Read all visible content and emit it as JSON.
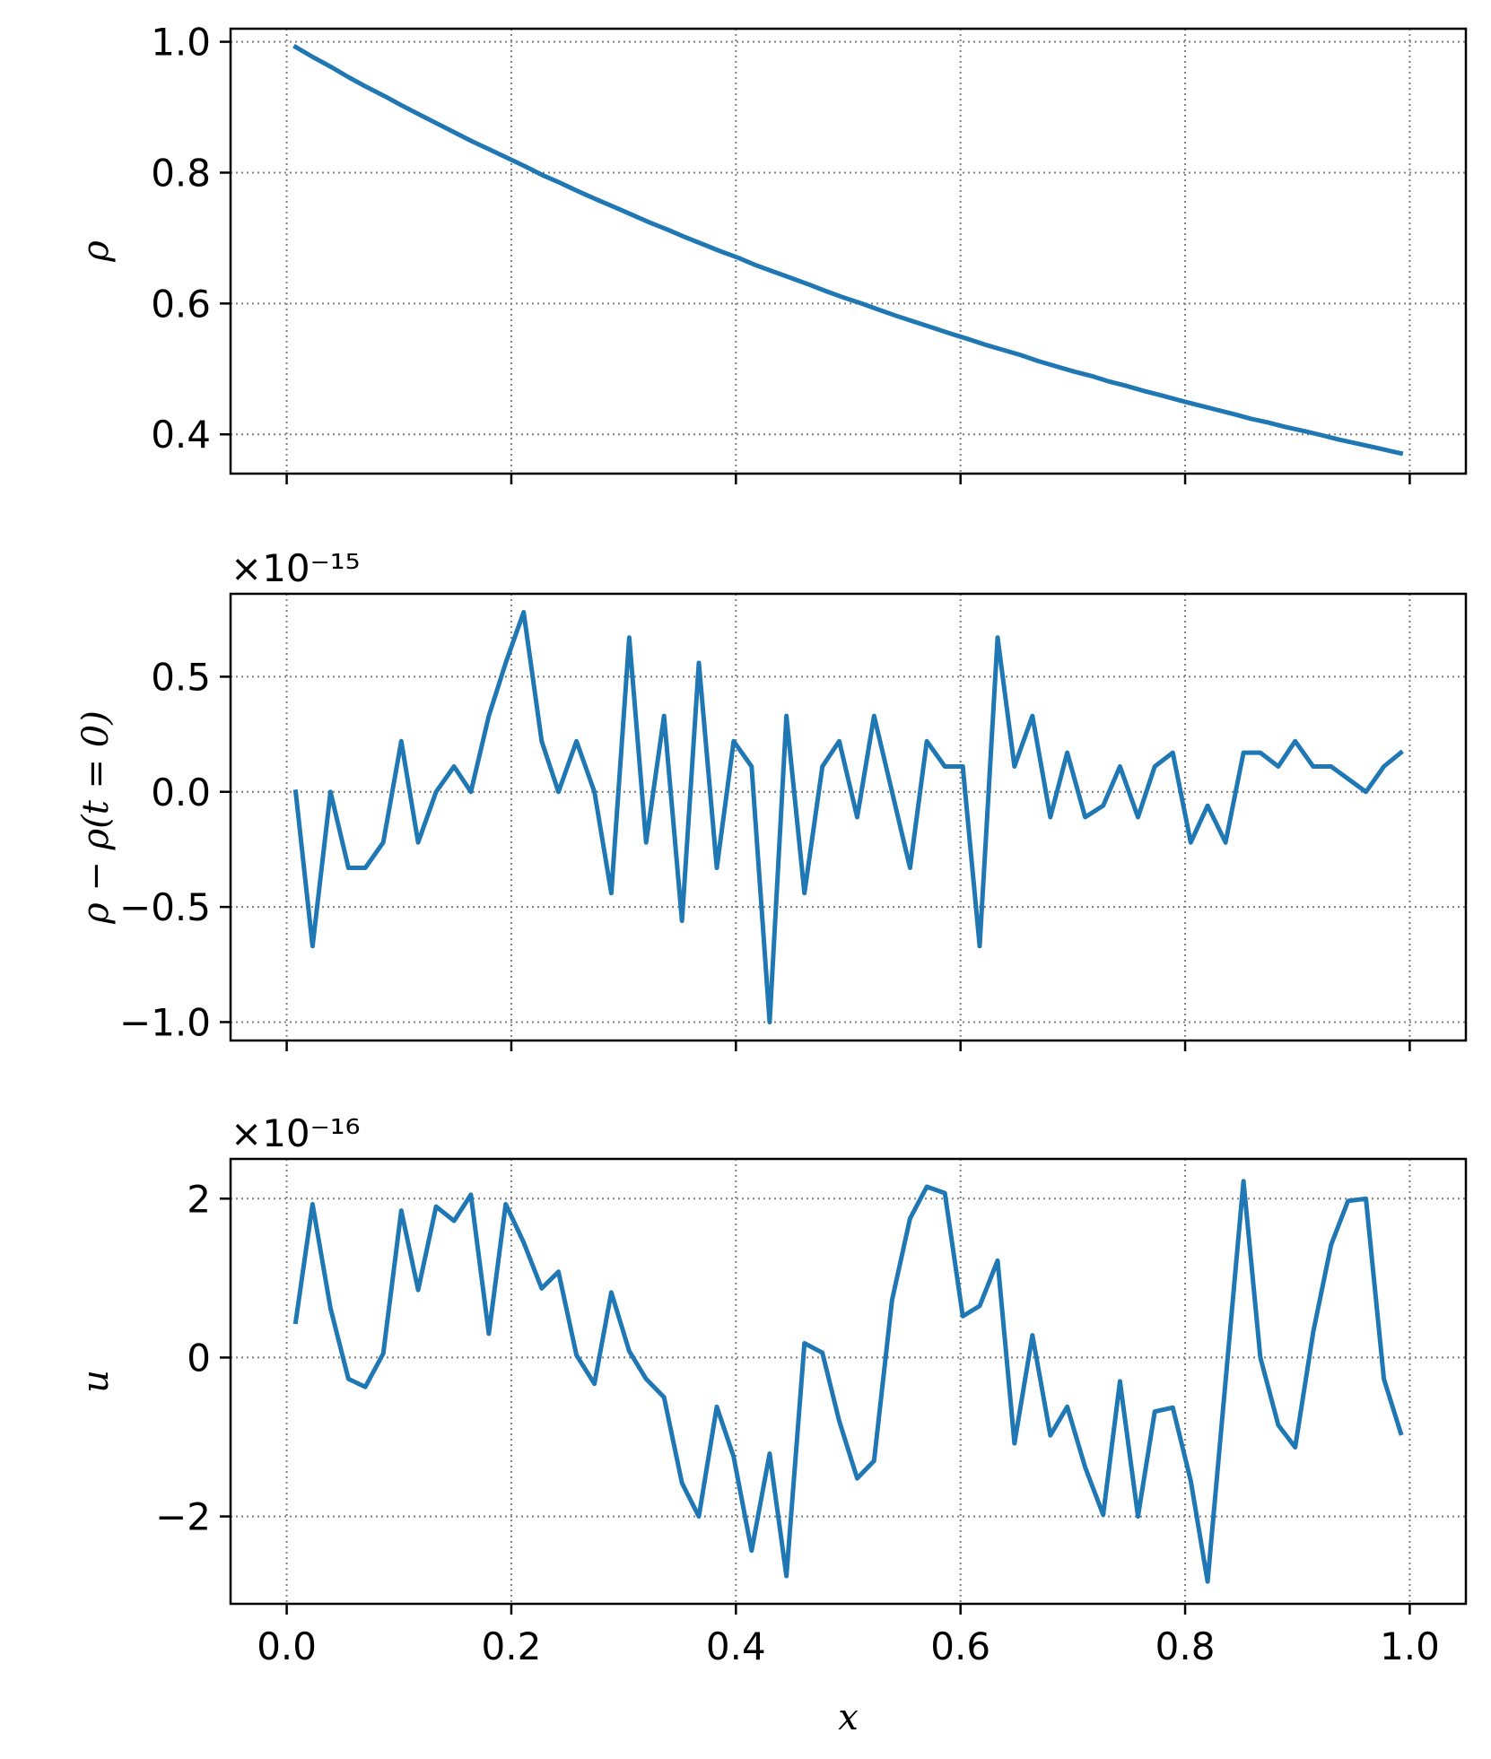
{
  "chart_data": [
    {
      "type": "line",
      "ylabel": "ρ",
      "xlabel": "",
      "xlim": [
        -0.05,
        1.05
      ],
      "ylim": [
        0.34,
        1.02
      ],
      "xticks": [
        0.0,
        0.2,
        0.4,
        0.6,
        0.8,
        1.0
      ],
      "xtick_labels": [],
      "yticks": [
        0.4,
        0.6,
        0.8,
        1.0
      ],
      "ytick_labels": [
        "0.4",
        "0.6",
        "0.8",
        "1.0"
      ],
      "offset_label": "",
      "grid": true,
      "color": "#1f77b4",
      "x": [
        0.008,
        0.024,
        0.04,
        0.055,
        0.071,
        0.087,
        0.102,
        0.118,
        0.134,
        0.15,
        0.165,
        0.181,
        0.197,
        0.213,
        0.228,
        0.244,
        0.26,
        0.276,
        0.291,
        0.307,
        0.323,
        0.339,
        0.354,
        0.37,
        0.386,
        0.402,
        0.417,
        0.433,
        0.449,
        0.465,
        0.48,
        0.496,
        0.512,
        0.528,
        0.543,
        0.559,
        0.575,
        0.591,
        0.606,
        0.622,
        0.638,
        0.654,
        0.669,
        0.685,
        0.701,
        0.717,
        0.732,
        0.748,
        0.764,
        0.78,
        0.795,
        0.811,
        0.827,
        0.843,
        0.858,
        0.874,
        0.89,
        0.906,
        0.921,
        0.937,
        0.953,
        0.969,
        0.984,
        0.992
      ],
      "y": [
        0.992,
        0.976,
        0.961,
        0.946,
        0.931,
        0.917,
        0.903,
        0.889,
        0.875,
        0.861,
        0.848,
        0.835,
        0.822,
        0.809,
        0.796,
        0.784,
        0.771,
        0.759,
        0.748,
        0.736,
        0.724,
        0.713,
        0.702,
        0.691,
        0.68,
        0.67,
        0.659,
        0.649,
        0.639,
        0.629,
        0.619,
        0.609,
        0.6,
        0.59,
        0.581,
        0.572,
        0.563,
        0.554,
        0.546,
        0.537,
        0.529,
        0.521,
        0.512,
        0.504,
        0.496,
        0.489,
        0.481,
        0.474,
        0.466,
        0.459,
        0.452,
        0.445,
        0.438,
        0.431,
        0.424,
        0.418,
        0.411,
        0.405,
        0.399,
        0.392,
        0.386,
        0.38,
        0.374,
        0.371
      ]
    },
    {
      "type": "line",
      "ylabel": "ρ − ρ(t = 0)",
      "xlabel": "",
      "xlim": [
        -0.05,
        1.05
      ],
      "ylim": [
        -1.08,
        0.86
      ],
      "xticks": [
        0.0,
        0.2,
        0.4,
        0.6,
        0.8,
        1.0
      ],
      "xtick_labels": [],
      "yticks": [
        -1.0,
        -0.5,
        0.0,
        0.5
      ],
      "ytick_labels": [
        "−1.0",
        "−0.5",
        "0.0",
        "0.5"
      ],
      "offset_label": "×10⁻¹⁵",
      "grid": true,
      "color": "#1f77b4",
      "x": [
        0.008,
        0.023,
        0.039,
        0.055,
        0.07,
        0.086,
        0.102,
        0.117,
        0.133,
        0.149,
        0.164,
        0.18,
        0.195,
        0.211,
        0.227,
        0.242,
        0.258,
        0.274,
        0.289,
        0.305,
        0.32,
        0.336,
        0.352,
        0.367,
        0.383,
        0.398,
        0.414,
        0.43,
        0.445,
        0.461,
        0.477,
        0.492,
        0.508,
        0.523,
        0.555,
        0.57,
        0.586,
        0.602,
        0.617,
        0.633,
        0.648,
        0.664,
        0.68,
        0.695,
        0.711,
        0.727,
        0.742,
        0.758,
        0.773,
        0.789,
        0.805,
        0.82,
        0.836,
        0.852,
        0.867,
        0.883,
        0.898,
        0.914,
        0.93,
        0.961,
        0.977,
        0.992
      ],
      "y": [
        0.0,
        -0.67,
        0.0,
        -0.33,
        -0.33,
        -0.22,
        0.22,
        -0.22,
        0.0,
        0.11,
        0.0,
        0.33,
        0.56,
        0.78,
        0.22,
        0.0,
        0.22,
        0.0,
        -0.44,
        0.67,
        -0.22,
        0.33,
        -0.56,
        0.56,
        -0.33,
        0.22,
        0.11,
        -1.0,
        0.33,
        -0.44,
        0.11,
        0.22,
        -0.11,
        0.33,
        -0.33,
        0.22,
        0.11,
        0.11,
        -0.67,
        0.67,
        0.11,
        0.33,
        -0.11,
        0.17,
        -0.11,
        -0.06,
        0.11,
        -0.11,
        0.11,
        0.17,
        -0.22,
        -0.06,
        -0.22,
        0.17,
        0.17,
        0.11,
        0.22,
        0.11,
        0.11,
        0.0,
        0.11,
        0.17
      ]
    },
    {
      "type": "line",
      "ylabel": "u",
      "xlabel": "x",
      "xlim": [
        -0.05,
        1.05
      ],
      "ylim": [
        -3.1,
        2.5
      ],
      "xticks": [
        0.0,
        0.2,
        0.4,
        0.6,
        0.8,
        1.0
      ],
      "xtick_labels": [
        "0.0",
        "0.2",
        "0.4",
        "0.6",
        "0.8",
        "1.0"
      ],
      "yticks": [
        -2,
        0,
        2
      ],
      "ytick_labels": [
        "−2",
        "0",
        "2"
      ],
      "offset_label": "×10⁻¹⁶",
      "grid": true,
      "color": "#1f77b4",
      "x": [
        0.008,
        0.023,
        0.039,
        0.055,
        0.07,
        0.086,
        0.102,
        0.117,
        0.133,
        0.149,
        0.164,
        0.18,
        0.195,
        0.211,
        0.227,
        0.242,
        0.258,
        0.274,
        0.289,
        0.305,
        0.32,
        0.336,
        0.352,
        0.367,
        0.383,
        0.398,
        0.414,
        0.43,
        0.445,
        0.461,
        0.477,
        0.492,
        0.508,
        0.523,
        0.539,
        0.555,
        0.57,
        0.586,
        0.602,
        0.617,
        0.633,
        0.648,
        0.664,
        0.68,
        0.695,
        0.711,
        0.727,
        0.742,
        0.758,
        0.773,
        0.789,
        0.805,
        0.82,
        0.836,
        0.852,
        0.867,
        0.883,
        0.898,
        0.914,
        0.93,
        0.945,
        0.961,
        0.977,
        0.992
      ],
      "y": [
        0.45,
        1.93,
        0.62,
        -0.27,
        -0.37,
        0.05,
        1.85,
        0.85,
        1.9,
        1.72,
        2.05,
        0.3,
        1.93,
        1.45,
        0.87,
        1.08,
        0.03,
        -0.33,
        0.82,
        0.08,
        -0.27,
        -0.5,
        -1.58,
        -2.0,
        -0.62,
        -1.25,
        -2.43,
        -1.21,
        -2.75,
        0.18,
        0.06,
        -0.8,
        -1.52,
        -1.3,
        0.72,
        1.75,
        2.15,
        2.07,
        0.52,
        0.65,
        1.22,
        -1.08,
        0.28,
        -0.98,
        -0.62,
        -1.38,
        -1.98,
        -0.3,
        -2.0,
        -0.68,
        -0.63,
        -1.55,
        -2.82,
        -0.3,
        2.22,
        0.0,
        -0.85,
        -1.13,
        0.32,
        1.42,
        1.97,
        2.0,
        -0.27,
        -0.95
      ]
    }
  ]
}
